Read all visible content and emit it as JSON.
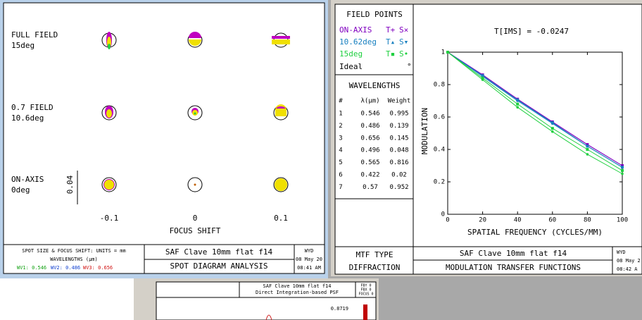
{
  "spot_window": {
    "fields": [
      {
        "name": "FULL FIELD",
        "angle": "15deg"
      },
      {
        "name": "0.7 FIELD",
        "angle": "10.6deg"
      },
      {
        "name": "ON-AXIS",
        "angle": "0deg"
      }
    ],
    "scale_label": "0.04",
    "focus_ticks": [
      "-0.1",
      "0",
      "0.1"
    ],
    "focus_label": "FOCUS SHIFT",
    "footer": {
      "units": "SPOT SIZE & FOCUS SHIFT: UNITS = mm",
      "wavelengths_label": "WAVELENGTHS (μm)",
      "wv1": "WV1: 0.546",
      "wv2": "WV2: 0.486",
      "wv3": "WV3: 0.656",
      "lens": "SAF Clave 10mm flat f14",
      "analysis": "SPOT DIAGRAM ANALYSIS",
      "user": "WYD",
      "date": "08 May 20",
      "time": "08:41 AM"
    }
  },
  "mtf_window": {
    "field_points_title": "FIELD POINTS",
    "ideal_label": "Ideal",
    "ideal_symbol": "°",
    "wavelengths_title": "WAVELENGTHS",
    "wavelength_headers": [
      "#",
      "λ(μm)",
      "Weight"
    ],
    "wavelength_rows": [
      [
        "1",
        "0.546",
        "0.995"
      ],
      [
        "2",
        "0.486",
        "0.139"
      ],
      [
        "3",
        "0.656",
        "0.145"
      ],
      [
        "4",
        "0.496",
        "0.048"
      ],
      [
        "5",
        "0.565",
        "0.816"
      ],
      [
        "6",
        "0.422",
        "0.02"
      ],
      [
        "7",
        "0.57",
        "0.952"
      ]
    ],
    "footer": {
      "mtf_type_label": "MTF TYPE",
      "mtf_type": "DIFFRACTION",
      "lens": "SAF Clave 10mm flat f14",
      "analysis": "MODULATION TRANSFER FUNCTIONS",
      "user": "WYD",
      "date": "08 May 2",
      "time": "08:42 A"
    }
  },
  "psf_window": {
    "lens": "SAF Clave 10mm flat f14",
    "analysis": "Direct Integration-based PSF",
    "peak": "0.8719",
    "fby": "FBY 0",
    "fbx": "FBX 0",
    "focus": "FOCUS 0"
  },
  "chart_data": {
    "type": "line",
    "title": "T[IMS] = -0.0247",
    "x_label": "SPATIAL FREQUENCY (CYCLES/MM)",
    "y_label": "MODULATION",
    "x": [
      0,
      20,
      40,
      60,
      80,
      100
    ],
    "xlim": [
      0,
      100
    ],
    "ylim": [
      0,
      1
    ],
    "xticks": [
      0,
      20,
      40,
      60,
      80,
      100
    ],
    "yticks": [
      0,
      0.2,
      0.4,
      0.6,
      0.8,
      1
    ],
    "series": [
      {
        "name": "ON-AXIS",
        "tangential": "T+",
        "sagittal": "S×",
        "color": "#8000c0",
        "t_values": [
          1,
          0.86,
          0.71,
          0.57,
          0.43,
          0.3
        ],
        "s_values": [
          1,
          0.86,
          0.71,
          0.57,
          0.43,
          0.3
        ]
      },
      {
        "name": "10.62deg",
        "tangential": "T▴",
        "sagittal": "S▾",
        "color": "#1880c0",
        "t_values": [
          1,
          0.855,
          0.705,
          0.565,
          0.42,
          0.29
        ],
        "s_values": [
          1,
          0.85,
          0.7,
          0.56,
          0.42,
          0.29
        ]
      },
      {
        "name": "15deg",
        "tangential": "T▪",
        "sagittal": "S•",
        "color": "#20d040",
        "t_values": [
          1,
          0.84,
          0.68,
          0.53,
          0.4,
          0.27
        ],
        "s_values": [
          1,
          0.83,
          0.66,
          0.51,
          0.37,
          0.25
        ]
      }
    ]
  }
}
